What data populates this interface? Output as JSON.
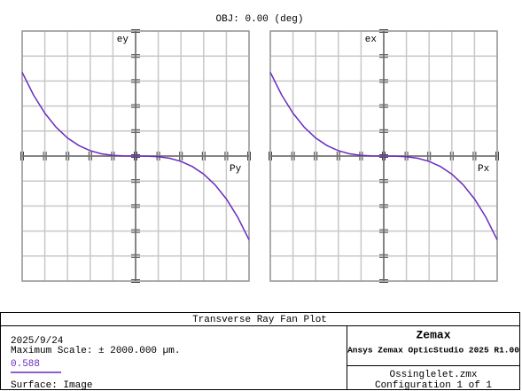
{
  "title": "OBJ: 0.00 (deg)",
  "chart_data": [
    {
      "type": "line",
      "ylabel": "ey",
      "xlabel": "Py",
      "x": [
        -1,
        -0.9,
        -0.8,
        -0.7,
        -0.6,
        -0.5,
        -0.4,
        -0.3,
        -0.2,
        -0.1,
        0,
        0.1,
        0.2,
        0.3,
        0.4,
        0.5,
        0.6,
        0.7,
        0.8,
        0.9,
        1
      ],
      "series": [
        {
          "color": "#6a2cc0",
          "values": [
            1340,
            977,
            686,
            460,
            289,
            168,
            86,
            36,
            11,
            1,
            0,
            -1,
            -11,
            -36,
            -86,
            -168,
            -289,
            -460,
            -686,
            -977,
            -1340
          ]
        }
      ],
      "xlim": [
        -1,
        1
      ],
      "ylim": [
        -2000,
        2000
      ],
      "xticks": [
        -1,
        -0.8,
        -0.6,
        -0.4,
        -0.2,
        0,
        0.2,
        0.4,
        0.6,
        0.8,
        1
      ],
      "yticks": [
        -2000,
        -1600,
        -1200,
        -800,
        -400,
        0,
        400,
        800,
        1200,
        1600,
        2000
      ],
      "grid": true
    },
    {
      "type": "line",
      "ylabel": "ex",
      "xlabel": "Px",
      "x": [
        -1,
        -0.9,
        -0.8,
        -0.7,
        -0.6,
        -0.5,
        -0.4,
        -0.3,
        -0.2,
        -0.1,
        0,
        0.1,
        0.2,
        0.3,
        0.4,
        0.5,
        0.6,
        0.7,
        0.8,
        0.9,
        1
      ],
      "series": [
        {
          "color": "#6a2cc0",
          "values": [
            1340,
            977,
            686,
            460,
            289,
            168,
            86,
            36,
            11,
            1,
            0,
            -1,
            -11,
            -36,
            -86,
            -168,
            -289,
            -460,
            -686,
            -977,
            -1340
          ]
        }
      ],
      "xlim": [
        -1,
        1
      ],
      "ylim": [
        -2000,
        2000
      ],
      "xticks": [
        -1,
        -0.8,
        -0.6,
        -0.4,
        -0.2,
        0,
        0.2,
        0.4,
        0.6,
        0.8,
        1
      ],
      "yticks": [
        -2000,
        -1600,
        -1200,
        -800,
        -400,
        0,
        400,
        800,
        1200,
        1600,
        2000
      ],
      "grid": true
    }
  ],
  "footer": {
    "title": "Transverse Ray Fan Plot",
    "date": "2025/9/24",
    "scale": "Maximum Scale: ± 2000.000 µm.",
    "wavelength": "0.588",
    "surface": "Surface: Image",
    "company": "Zemax",
    "product": "Ansys Zemax OpticStudio 2025 R1.00",
    "file": "Ossinglelet.zmx",
    "config": "Configuration 1 of 1"
  }
}
